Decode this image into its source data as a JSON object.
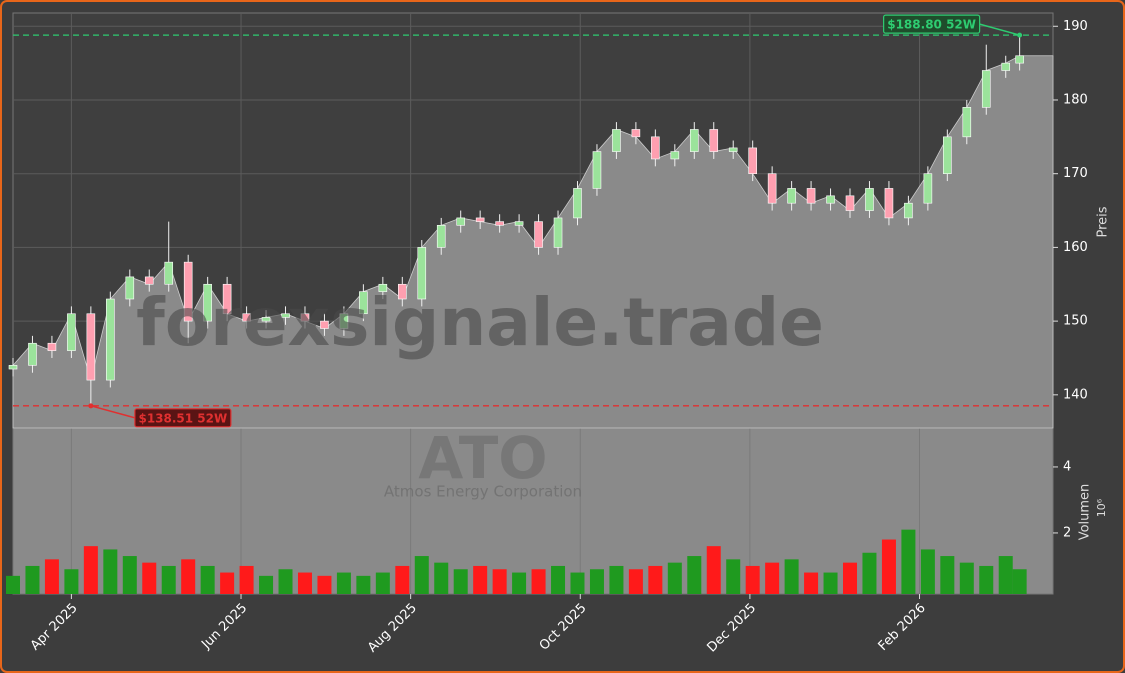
{
  "chart_data": {
    "type": "candlestick",
    "watermark": "forexsignale.trade",
    "symbol": "ATO",
    "company": "Atmos Energy Corporation",
    "ylabel": "Preis",
    "grid": true,
    "xlim": [
      0,
      374
    ],
    "xticks": [
      {
        "value": 21,
        "label": "Apr 2025"
      },
      {
        "value": 82,
        "label": "Jun 2025"
      },
      {
        "value": 143,
        "label": "Aug 2025"
      },
      {
        "value": 204,
        "label": "Oct 2025"
      },
      {
        "value": 265,
        "label": "Dec 2025"
      },
      {
        "value": 326,
        "label": "Feb 2026"
      }
    ],
    "ylim": [
      135.5,
      191.8
    ],
    "yticks": [
      140,
      150,
      160,
      170,
      180,
      190
    ],
    "up_color": "#9be39b",
    "down_color": "#ff9fb0",
    "area_color": "#8a8a8a",
    "x": [
      0,
      7,
      14,
      21,
      28,
      35,
      42,
      49,
      56,
      63,
      70,
      77,
      84,
      91,
      98,
      105,
      112,
      119,
      126,
      133,
      140,
      147,
      154,
      161,
      168,
      175,
      182,
      189,
      196,
      203,
      210,
      217,
      224,
      231,
      238,
      245,
      252,
      259,
      266,
      273,
      280,
      287,
      294,
      301,
      308,
      315,
      322,
      329,
      336,
      343,
      350,
      357,
      362
    ],
    "open": [
      143.5,
      144,
      147,
      146,
      151,
      142,
      153,
      156,
      155,
      158,
      150,
      155,
      151,
      150,
      150.5,
      151,
      150,
      149,
      151,
      154,
      155,
      153,
      160,
      163,
      164,
      163.5,
      163,
      163.5,
      160,
      164,
      168,
      173,
      176,
      175,
      172,
      173,
      176,
      173,
      173.5,
      170,
      166,
      168,
      166,
      167,
      165,
      168,
      164,
      166,
      170,
      175,
      179,
      184,
      185
    ],
    "high": [
      145,
      148,
      148,
      152,
      152,
      154,
      157,
      157,
      163.5,
      159,
      156,
      156,
      152,
      151.5,
      152,
      152,
      151,
      152,
      155,
      156,
      156,
      161,
      164,
      165,
      165,
      164.5,
      164.5,
      164.5,
      165,
      169,
      174,
      177,
      177,
      176,
      174,
      177,
      177,
      174.5,
      174.5,
      171,
      169,
      169,
      168,
      168,
      169,
      169,
      167,
      171,
      176,
      180,
      187.5,
      186,
      188.8
    ],
    "low": [
      142.5,
      143,
      145,
      145,
      138.51,
      141,
      152,
      154,
      154,
      147,
      149,
      150,
      149,
      149,
      149.5,
      149,
      148,
      148,
      150,
      153,
      152,
      152,
      159,
      162,
      162.5,
      162,
      162,
      159,
      159,
      163,
      167,
      172,
      174,
      171,
      171,
      172,
      172,
      172,
      169,
      165,
      165,
      165,
      165,
      164,
      164,
      163,
      163,
      165,
      169,
      174,
      178,
      183,
      184
    ],
    "close": [
      144,
      147,
      146,
      151,
      142,
      153,
      156,
      155,
      158,
      150,
      155,
      151,
      150,
      150.5,
      151,
      150,
      149,
      151,
      154,
      155,
      153,
      160,
      163,
      164,
      163.5,
      163,
      163.5,
      160,
      164,
      168,
      173,
      176,
      175,
      172,
      173,
      176,
      173,
      173.5,
      170,
      166,
      168,
      166,
      167,
      165,
      168,
      164,
      166,
      170,
      175,
      179,
      184,
      185,
      186
    ],
    "annotations": [
      {
        "label": "$188.80 52W",
        "value": 188.8,
        "color": "#2ecc71"
      },
      {
        "label": "$138.51 52W",
        "value": 138.51,
        "color": "#e03030"
      }
    ],
    "volume": {
      "label": "Volumen",
      "scale_label": "10⁶",
      "ylim": [
        0.15,
        5.18
      ],
      "yticks": [
        2,
        4
      ],
      "up_color": "#1f9a1f",
      "down_color": "#ff1a1a",
      "values": [
        0.7,
        1.0,
        1.2,
        0.9,
        1.6,
        1.5,
        1.3,
        1.1,
        1.0,
        1.2,
        1.0,
        0.8,
        1.0,
        0.7,
        0.9,
        0.8,
        0.7,
        0.8,
        0.7,
        0.8,
        1.0,
        1.3,
        1.1,
        0.9,
        1.0,
        0.9,
        0.8,
        0.9,
        1.0,
        0.8,
        0.9,
        1.0,
        0.9,
        1.0,
        1.1,
        1.3,
        1.6,
        1.2,
        1.0,
        1.1,
        1.2,
        0.8,
        0.8,
        1.1,
        1.4,
        1.8,
        2.1,
        1.5,
        1.3,
        1.1,
        1.0,
        1.3,
        0.9
      ]
    }
  }
}
